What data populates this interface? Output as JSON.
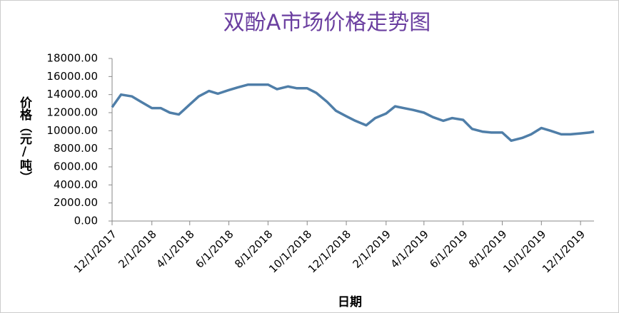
{
  "chart_data": {
    "type": "line",
    "title": "双酚A市场价格走势图",
    "x_label": "日期",
    "y_label": "价格（元/吨）",
    "x": [
      "2017-12-01",
      "2017-12-15",
      "2018-01-01",
      "2018-01-15",
      "2018-02-01",
      "2018-02-15",
      "2018-03-01",
      "2018-03-15",
      "2018-04-01",
      "2018-04-15",
      "2018-05-01",
      "2018-05-15",
      "2018-06-01",
      "2018-06-15",
      "2018-07-01",
      "2018-07-15",
      "2018-08-01",
      "2018-08-15",
      "2018-09-01",
      "2018-09-15",
      "2018-10-01",
      "2018-10-15",
      "2018-11-01",
      "2018-11-15",
      "2018-12-01",
      "2018-12-15",
      "2019-01-01",
      "2019-01-15",
      "2019-02-01",
      "2019-02-15",
      "2019-03-01",
      "2019-03-15",
      "2019-04-01",
      "2019-04-15",
      "2019-05-01",
      "2019-05-15",
      "2019-06-01",
      "2019-06-15",
      "2019-07-01",
      "2019-07-15",
      "2019-08-01",
      "2019-08-15",
      "2019-09-01",
      "2019-09-15",
      "2019-10-01",
      "2019-10-15",
      "2019-11-01",
      "2019-11-15",
      "2019-12-01",
      "2019-12-15",
      "2019-12-22"
    ],
    "series": [
      {
        "color": "#4f7ea8",
        "values": [
          12600,
          14000,
          13800,
          13200,
          12500,
          12500,
          12000,
          11800,
          12900,
          13800,
          14400,
          14100,
          14500,
          14800,
          15100,
          15100,
          15100,
          14600,
          14900,
          14700,
          14700,
          14200,
          13200,
          12200,
          11600,
          11100,
          10600,
          11400,
          11900,
          12700,
          12500,
          12300,
          12000,
          11500,
          11100,
          11400,
          11200,
          10200,
          9900,
          9800,
          9800,
          8900,
          9200,
          9600,
          10300,
          10000,
          9600,
          9600,
          9700,
          9800,
          9900
        ]
      }
    ],
    "xlim": [
      "2017-12-01",
      "2019-12-22"
    ],
    "xticks": [
      {
        "value": "2017-12-01",
        "label": "12/1/2017"
      },
      {
        "value": "2018-02-01",
        "label": "2/1/2018"
      },
      {
        "value": "2018-04-01",
        "label": "4/1/2018"
      },
      {
        "value": "2018-06-01",
        "label": "6/1/2018"
      },
      {
        "value": "2018-08-01",
        "label": "8/1/2018"
      },
      {
        "value": "2018-10-01",
        "label": "10/1/2018"
      },
      {
        "value": "2018-12-01",
        "label": "12/1/2018"
      },
      {
        "value": "2019-02-01",
        "label": "2/1/2019"
      },
      {
        "value": "2019-04-01",
        "label": "4/1/2019"
      },
      {
        "value": "2019-06-01",
        "label": "6/1/2019"
      },
      {
        "value": "2019-08-01",
        "label": "8/1/2019"
      },
      {
        "value": "2019-10-01",
        "label": "10/1/2019"
      },
      {
        "value": "2019-12-01",
        "label": "12/1/2019"
      }
    ],
    "ylim": [
      0,
      18000
    ],
    "yticks": [
      {
        "value": 0,
        "label": "0.00"
      },
      {
        "value": 2000,
        "label": "2000.00"
      },
      {
        "value": 4000,
        "label": "4000.00"
      },
      {
        "value": 6000,
        "label": "6000.00"
      },
      {
        "value": 8000,
        "label": "8000.00"
      },
      {
        "value": 10000,
        "label": "10000.00"
      },
      {
        "value": 12000,
        "label": "12000.00"
      },
      {
        "value": 14000,
        "label": "14000.00"
      },
      {
        "value": 16000,
        "label": "16000.00"
      },
      {
        "value": 18000,
        "label": "18000.00"
      }
    ],
    "grid": false,
    "title_color": "#6b3fa0"
  }
}
